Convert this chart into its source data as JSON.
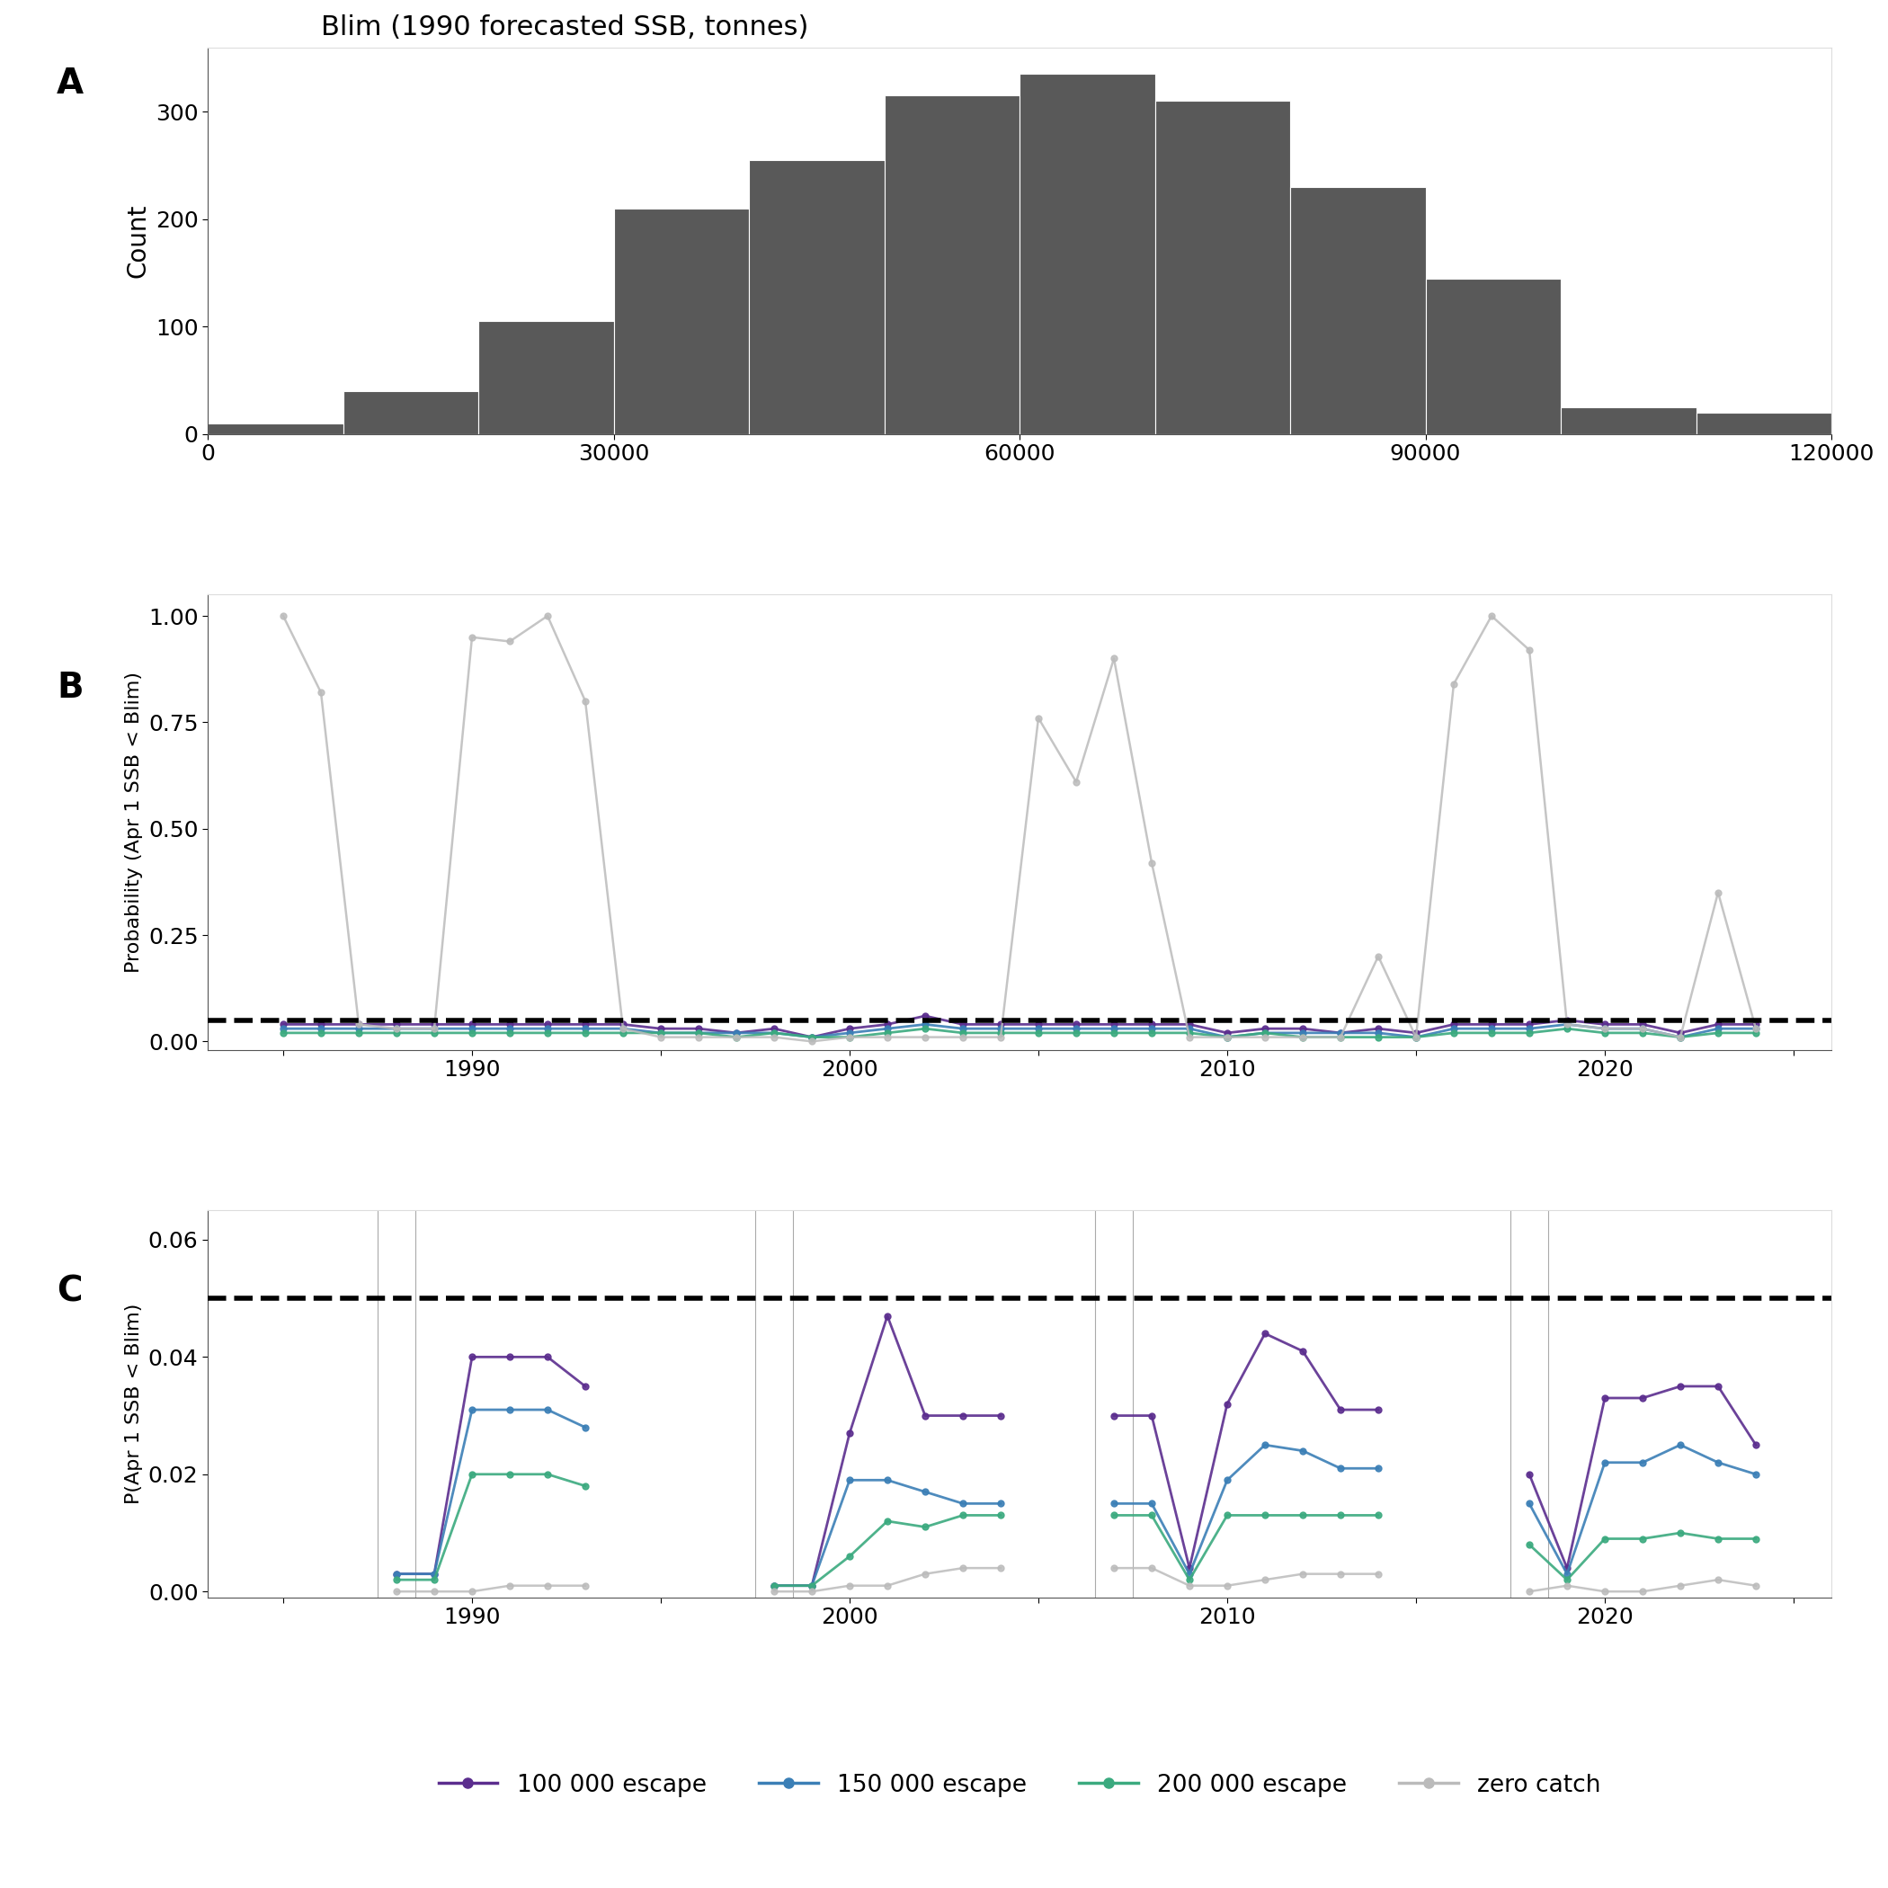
{
  "title_A": "Blim (1990 forecasted SSB, tonnes)",
  "hist_bins": [
    0,
    10000,
    20000,
    30000,
    40000,
    50000,
    60000,
    70000,
    80000,
    90000,
    100000,
    110000,
    120000
  ],
  "hist_counts": [
    10,
    40,
    105,
    210,
    255,
    315,
    335,
    310,
    230,
    145,
    25,
    20
  ],
  "hist_color": "#595959",
  "ylabel_A": "Count",
  "xlim_A": [
    0,
    120000
  ],
  "xticks_A": [
    0,
    30000,
    60000,
    90000,
    120000
  ],
  "yticks_A": [
    0,
    100,
    200,
    300
  ],
  "ylim_A": [
    0,
    360
  ],
  "years_B": [
    1985,
    1986,
    1987,
    1988,
    1989,
    1990,
    1991,
    1992,
    1993,
    1994,
    1995,
    1996,
    1997,
    1998,
    1999,
    2000,
    2001,
    2002,
    2003,
    2004,
    2005,
    2006,
    2007,
    2008,
    2009,
    2010,
    2011,
    2012,
    2013,
    2014,
    2015,
    2016,
    2017,
    2018,
    2019,
    2020,
    2021,
    2022,
    2023,
    2024
  ],
  "risk100_B": [
    0.04,
    0.04,
    0.04,
    0.04,
    0.04,
    0.04,
    0.04,
    0.04,
    0.04,
    0.04,
    0.03,
    0.03,
    0.02,
    0.03,
    0.01,
    0.03,
    0.04,
    0.06,
    0.04,
    0.04,
    0.04,
    0.04,
    0.04,
    0.04,
    0.04,
    0.02,
    0.03,
    0.03,
    0.02,
    0.03,
    0.02,
    0.04,
    0.04,
    0.04,
    0.05,
    0.04,
    0.04,
    0.02,
    0.04,
    0.04
  ],
  "risk150_B": [
    0.03,
    0.03,
    0.03,
    0.03,
    0.03,
    0.03,
    0.03,
    0.03,
    0.03,
    0.03,
    0.02,
    0.02,
    0.02,
    0.02,
    0.01,
    0.02,
    0.03,
    0.04,
    0.03,
    0.03,
    0.03,
    0.03,
    0.03,
    0.03,
    0.03,
    0.01,
    0.02,
    0.02,
    0.02,
    0.02,
    0.01,
    0.03,
    0.03,
    0.03,
    0.04,
    0.03,
    0.03,
    0.01,
    0.03,
    0.03
  ],
  "risk200_B": [
    0.02,
    0.02,
    0.02,
    0.02,
    0.02,
    0.02,
    0.02,
    0.02,
    0.02,
    0.02,
    0.02,
    0.02,
    0.01,
    0.02,
    0.01,
    0.01,
    0.02,
    0.03,
    0.02,
    0.02,
    0.02,
    0.02,
    0.02,
    0.02,
    0.02,
    0.01,
    0.02,
    0.01,
    0.01,
    0.01,
    0.01,
    0.02,
    0.02,
    0.02,
    0.03,
    0.02,
    0.02,
    0.01,
    0.02,
    0.02
  ],
  "risk_zero_B": [
    1.0,
    0.82,
    0.04,
    0.03,
    0.03,
    0.95,
    0.94,
    1.0,
    0.8,
    0.03,
    0.01,
    0.01,
    0.01,
    0.01,
    0.0,
    0.01,
    0.01,
    0.01,
    0.01,
    0.01,
    0.76,
    0.61,
    0.9,
    0.42,
    0.01,
    0.01,
    0.01,
    0.01,
    0.01,
    0.2,
    0.01,
    0.84,
    1.0,
    0.92,
    0.04,
    0.03,
    0.03,
    0.01,
    0.35,
    0.03
  ],
  "ylabel_B": "Probability (Apr 1 SSB < Blim)",
  "ylim_B": [
    -0.02,
    1.05
  ],
  "yticks_B": [
    0.0,
    0.25,
    0.5,
    0.75,
    1.0
  ],
  "dashed_B": 0.05,
  "years_C_seg1": [
    1988,
    1989,
    1990,
    1991,
    1992,
    1993
  ],
  "years_C_seg2": [
    1998,
    1999,
    2000,
    2001,
    2002,
    2003,
    2004
  ],
  "years_C_seg3": [
    2007,
    2008,
    2009,
    2010,
    2011,
    2012,
    2013,
    2014
  ],
  "years_C_seg4": [
    2018,
    2019,
    2020,
    2021,
    2022,
    2023,
    2024
  ],
  "risk100_C_s1": [
    0.003,
    0.003,
    0.04,
    0.04,
    0.04,
    0.035
  ],
  "risk100_C_s2": [
    0.001,
    0.001,
    0.027,
    0.047,
    0.03,
    0.03,
    0.03
  ],
  "risk100_C_s3": [
    0.03,
    0.03,
    0.004,
    0.032,
    0.044,
    0.041,
    0.031,
    0.031
  ],
  "risk100_C_s4": [
    0.02,
    0.004,
    0.033,
    0.033,
    0.035,
    0.035,
    0.025
  ],
  "risk150_C_s1": [
    0.003,
    0.003,
    0.031,
    0.031,
    0.031,
    0.028
  ],
  "risk150_C_s2": [
    0.001,
    0.001,
    0.019,
    0.019,
    0.017,
    0.015,
    0.015
  ],
  "risk150_C_s3": [
    0.015,
    0.015,
    0.003,
    0.019,
    0.025,
    0.024,
    0.021,
    0.021
  ],
  "risk150_C_s4": [
    0.015,
    0.003,
    0.022,
    0.022,
    0.025,
    0.022,
    0.02
  ],
  "risk200_C_s1": [
    0.002,
    0.002,
    0.02,
    0.02,
    0.02,
    0.018
  ],
  "risk200_C_s2": [
    0.001,
    0.001,
    0.006,
    0.012,
    0.011,
    0.013,
    0.013
  ],
  "risk200_C_s3": [
    0.013,
    0.013,
    0.002,
    0.013,
    0.013,
    0.013,
    0.013,
    0.013
  ],
  "risk200_C_s4": [
    0.008,
    0.002,
    0.009,
    0.009,
    0.01,
    0.009,
    0.009
  ],
  "risk_zero_C_s1": [
    0.0,
    0.0,
    0.0,
    0.001,
    0.001,
    0.001
  ],
  "risk_zero_C_s2": [
    0.0,
    0.0,
    0.001,
    0.001,
    0.003,
    0.004,
    0.004
  ],
  "risk_zero_C_s3": [
    0.004,
    0.004,
    0.001,
    0.001,
    0.002,
    0.003,
    0.003,
    0.003
  ],
  "risk_zero_C_s4": [
    0.0,
    0.001,
    0.0,
    0.0,
    0.001,
    0.002,
    0.001
  ],
  "ylabel_C": "P(Apr 1 SSB < Blim)",
  "ylim_C": [
    -0.001,
    0.065
  ],
  "yticks_C": [
    0.0,
    0.02,
    0.04,
    0.06
  ],
  "dashed_C": 0.05,
  "color_100": "#5B2D8E",
  "color_150": "#3B7FB6",
  "color_200": "#3BAA7F",
  "color_zero": "#BBBBBB",
  "legend_labels": [
    "100 000 escape",
    "150 000 escape",
    "200 000 escape",
    "zero catch"
  ],
  "xticks_BC": [
    1985,
    1990,
    1995,
    2000,
    2005,
    2010,
    2015,
    2020,
    2025
  ],
  "xticklabels_BC": [
    "",
    "1990",
    "",
    "2000",
    "",
    "2010",
    "",
    "2020",
    ""
  ],
  "xlim_BC": [
    1983,
    2026
  ]
}
